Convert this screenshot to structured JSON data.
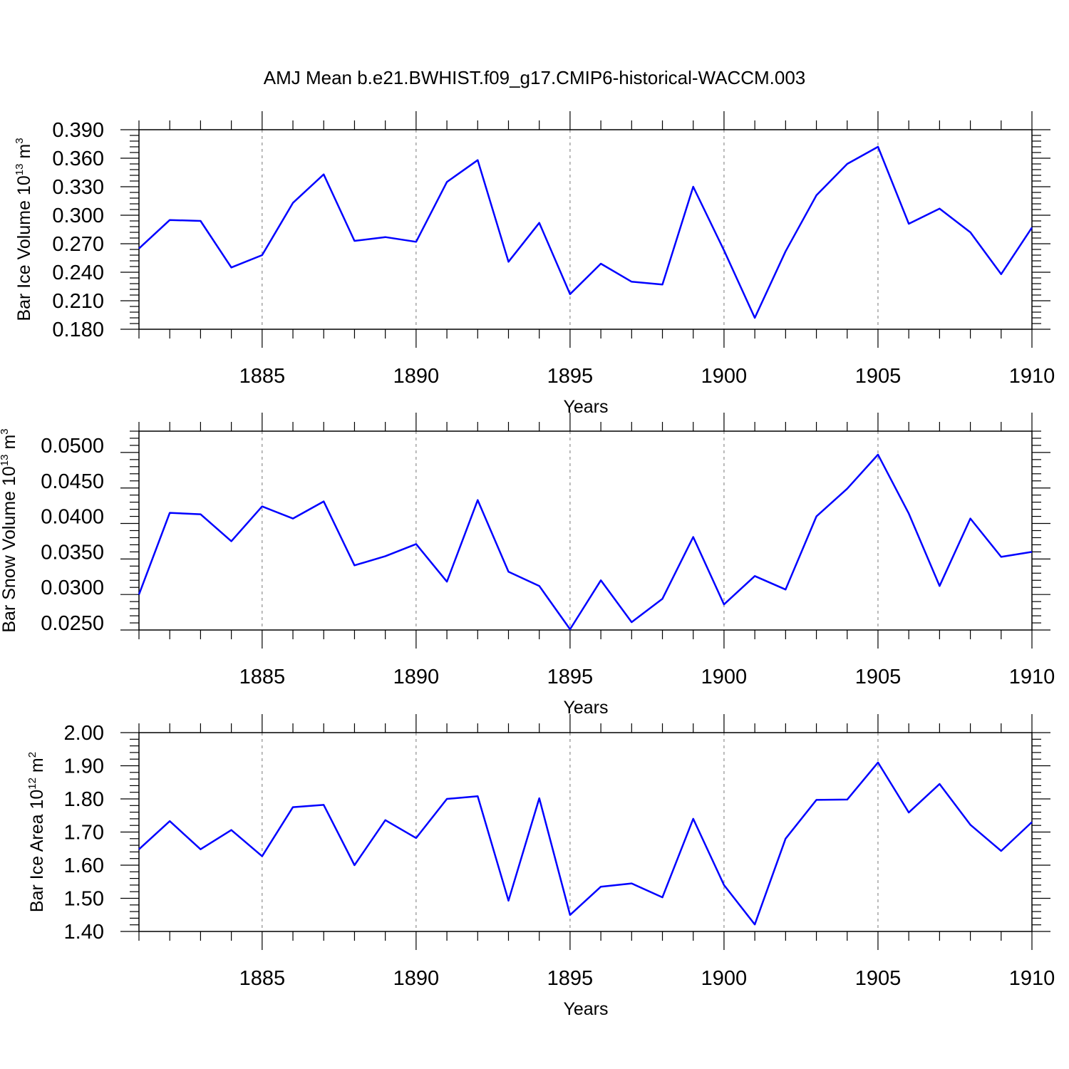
{
  "title": "AMJ Mean b.e21.BWHIST.f09_g17.CMIP6-historical-WACCM.003",
  "chart_data": [
    {
      "type": "line",
      "name": "ice-volume",
      "xlabel": "Years",
      "ylabel": {
        "prefix": "Bar Ice Volume 10",
        "exp": "13",
        "unit": " m",
        "unit_exp": "3"
      },
      "xlim": [
        1881,
        1910
      ],
      "ylim": [
        0.18,
        0.39
      ],
      "yticks": [
        "0.390",
        "0.360",
        "0.330",
        "0.300",
        "0.270",
        "0.240",
        "0.210",
        "0.180"
      ],
      "xticks": [
        "1885",
        "1890",
        "1895",
        "1900",
        "1905",
        "1910"
      ],
      "x": [
        1881,
        1882,
        1883,
        1884,
        1885,
        1886,
        1887,
        1888,
        1889,
        1890,
        1891,
        1892,
        1893,
        1894,
        1895,
        1896,
        1897,
        1898,
        1899,
        1900,
        1901,
        1902,
        1903,
        1904,
        1905,
        1906,
        1907,
        1908,
        1909,
        1910
      ],
      "values": [
        0.265,
        0.295,
        0.294,
        0.245,
        0.258,
        0.313,
        0.343,
        0.273,
        0.277,
        0.272,
        0.335,
        0.358,
        0.251,
        0.292,
        0.217,
        0.249,
        0.23,
        0.227,
        0.33,
        0.263,
        0.192,
        0.262,
        0.321,
        0.354,
        0.372,
        0.291,
        0.307,
        0.282,
        0.238,
        0.287
      ]
    },
    {
      "type": "line",
      "name": "snow-volume",
      "xlabel": "Years",
      "ylabel": {
        "prefix": "Bar Snow Volume 10",
        "exp": "13",
        "unit": " m",
        "unit_exp": "3"
      },
      "xlim": [
        1881,
        1910
      ],
      "ylim": [
        0.024,
        0.052
      ],
      "yticks": [
        "0.0500",
        "0.0450",
        "0.0400",
        "0.0350",
        "0.0300",
        "0.0250"
      ],
      "xticks": [
        "1885",
        "1890",
        "1895",
        "1900",
        "1905",
        "1910"
      ],
      "x": [
        1881,
        1882,
        1883,
        1884,
        1885,
        1886,
        1887,
        1888,
        1889,
        1890,
        1891,
        1892,
        1893,
        1894,
        1895,
        1896,
        1897,
        1898,
        1899,
        1900,
        1901,
        1902,
        1903,
        1904,
        1905,
        1906,
        1907,
        1908,
        1909,
        1910
      ],
      "values": [
        0.029,
        0.0405,
        0.0403,
        0.0365,
        0.0414,
        0.0397,
        0.0421,
        0.0331,
        0.0344,
        0.0361,
        0.0308,
        0.0423,
        0.0322,
        0.0302,
        0.0241,
        0.031,
        0.0251,
        0.0284,
        0.0371,
        0.0276,
        0.0316,
        0.0297,
        0.04,
        0.0439,
        0.0487,
        0.0404,
        0.0302,
        0.0397,
        0.0343,
        0.035
      ]
    },
    {
      "type": "line",
      "name": "ice-area",
      "xlabel": "Years",
      "ylabel": {
        "prefix": "Bar Ice Area 10",
        "exp": "12",
        "unit": " m",
        "unit_exp": "2"
      },
      "xlim": [
        1881,
        1910
      ],
      "ylim": [
        1.4,
        2.0
      ],
      "yticks": [
        "2.00",
        "1.90",
        "1.80",
        "1.70",
        "1.60",
        "1.50",
        "1.40"
      ],
      "xticks": [
        "1885",
        "1890",
        "1895",
        "1900",
        "1905",
        "1910"
      ],
      "x": [
        1881,
        1882,
        1883,
        1884,
        1885,
        1886,
        1887,
        1888,
        1889,
        1890,
        1891,
        1892,
        1893,
        1894,
        1895,
        1896,
        1897,
        1898,
        1899,
        1900,
        1901,
        1902,
        1903,
        1904,
        1905,
        1906,
        1907,
        1908,
        1909,
        1910
      ],
      "values": [
        1.648,
        1.733,
        1.648,
        1.706,
        1.627,
        1.775,
        1.782,
        1.6,
        1.736,
        1.682,
        1.8,
        1.808,
        1.493,
        1.802,
        1.45,
        1.535,
        1.545,
        1.503,
        1.74,
        1.54,
        1.421,
        1.68,
        1.797,
        1.798,
        1.91,
        1.759,
        1.845,
        1.722,
        1.643,
        1.73
      ]
    }
  ]
}
